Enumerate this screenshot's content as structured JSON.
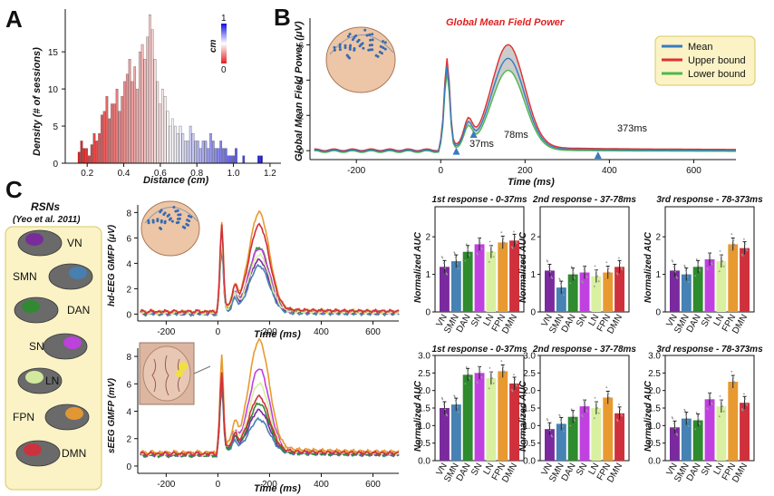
{
  "panels": {
    "a": "A",
    "b": "B",
    "c": "C"
  },
  "panel_a": {
    "ylabel": "Density (# of sessions)",
    "xlabel": "Distance (cm)",
    "xticks": [
      "0.2",
      "0.4",
      "0.6",
      "0.8",
      "1.0",
      "1.2"
    ],
    "yticks": [
      "0",
      "5",
      "10",
      "15"
    ],
    "colorbar": {
      "label": "cm",
      "min": "0",
      "max": "1",
      "low_color": "#e02020",
      "mid_color": "#ffffff",
      "high_color": "#1010e0"
    }
  },
  "panel_b": {
    "title": "Global Mean Field Power",
    "ylabel": "Global Mean Field Power (μV)",
    "xlabel": "Time (ms)",
    "xticks": [
      "-200",
      "0",
      "200",
      "400",
      "600"
    ],
    "yticks": [
      "0",
      "2",
      "4",
      "6"
    ],
    "legend": [
      "Mean",
      "Upper bound",
      "Lower bound"
    ],
    "annotations": [
      "37ms",
      "78ms",
      "373ms"
    ],
    "colors": {
      "mean": "#3a7bbf",
      "upper": "#e03030",
      "lower": "#4db84d",
      "band": "#cccccc"
    }
  },
  "panel_c": {
    "rsn_title": "RSNs",
    "rsn_source": "(Yeo et al. 2011)",
    "networks": [
      "VN",
      "SMN",
      "DAN",
      "SN",
      "LN",
      "FPN",
      "DMN"
    ],
    "network_colors": [
      "#7a2a9e",
      "#4682b4",
      "#2e8b2e",
      "#c040e0",
      "#d8f0a0",
      "#e89a30",
      "#d0303c"
    ],
    "hd_eeg": {
      "ylabel": "hd-EEG GMFP (μV)",
      "xlabel": "Time (ms)",
      "yticks": [
        "0",
        "2",
        "4",
        "6",
        "8"
      ],
      "xticks": [
        "-200",
        "0",
        "200",
        "400",
        "600"
      ]
    },
    "seeg": {
      "ylabel": "sEEG GMFP (mV)",
      "xlabel": "Time (ms)",
      "yticks": [
        "0",
        "2",
        "4",
        "6",
        "8"
      ],
      "xticks": [
        "-200",
        "0",
        "200",
        "400",
        "600"
      ]
    },
    "bar_titles": [
      "1st response - 0-37ms",
      "2nd response - 37-78ms",
      "3rd response - 78-373ms"
    ],
    "bar_ylabel": "Normalized AUC",
    "bar_yticks_top": [
      "0",
      "1",
      "2"
    ],
    "bar_yticks_bottom": [
      "0.0",
      "0.5",
      "1.0",
      "1.5",
      "2.0",
      "2.5",
      "3.0"
    ]
  },
  "chart_data": [
    {
      "type": "bar",
      "id": "hd-eeg-1st",
      "title": "1st response - 0-37ms",
      "ylabel": "Normalized AUC",
      "categories": [
        "VN",
        "SMN",
        "DAN",
        "SN",
        "LN",
        "FPN",
        "DMN"
      ],
      "values": [
        1.2,
        1.35,
        1.6,
        1.8,
        1.6,
        1.85,
        1.9
      ],
      "ylim": [
        0,
        2.8
      ]
    },
    {
      "type": "bar",
      "id": "hd-eeg-2nd",
      "title": "2nd response - 37-78ms",
      "ylabel": "Normalized AUC",
      "categories": [
        "VN",
        "SMN",
        "DAN",
        "SN",
        "LN",
        "FPN",
        "DMN"
      ],
      "values": [
        1.1,
        0.65,
        1.0,
        1.05,
        0.95,
        1.05,
        1.2
      ],
      "ylim": [
        0,
        2.8
      ]
    },
    {
      "type": "bar",
      "id": "hd-eeg-3rd",
      "title": "3rd response - 78-373ms",
      "ylabel": "Normalized AUC",
      "categories": [
        "VN",
        "SMN",
        "DAN",
        "SN",
        "LN",
        "FPN",
        "DMN"
      ],
      "values": [
        1.1,
        1.0,
        1.2,
        1.4,
        1.35,
        1.8,
        1.7
      ],
      "ylim": [
        0,
        2.8
      ]
    },
    {
      "type": "bar",
      "id": "seeg-1st",
      "title": "1st response - 0-37ms",
      "ylabel": "Normalized AUC",
      "categories": [
        "VN",
        "SMN",
        "DAN",
        "SN",
        "LN",
        "FPN",
        "DMN"
      ],
      "values": [
        1.5,
        1.6,
        2.45,
        2.5,
        2.35,
        2.55,
        2.2
      ],
      "ylim": [
        0,
        3.0
      ]
    },
    {
      "type": "bar",
      "id": "seeg-2nd",
      "title": "2nd response - 37-78ms",
      "ylabel": "Normalized AUC",
      "categories": [
        "VN",
        "SMN",
        "DAN",
        "SN",
        "LN",
        "FPN",
        "DMN"
      ],
      "values": [
        0.9,
        1.05,
        1.25,
        1.55,
        1.5,
        1.8,
        1.35
      ],
      "ylim": [
        0,
        3.0
      ]
    },
    {
      "type": "bar",
      "id": "seeg-3rd",
      "title": "3rd response - 78-373ms",
      "ylabel": "Normalized AUC",
      "categories": [
        "VN",
        "SMN",
        "DAN",
        "SN",
        "LN",
        "FPN",
        "DMN"
      ],
      "values": [
        0.95,
        1.2,
        1.15,
        1.75,
        1.55,
        2.25,
        1.65
      ],
      "ylim": [
        0,
        3.0
      ]
    }
  ]
}
